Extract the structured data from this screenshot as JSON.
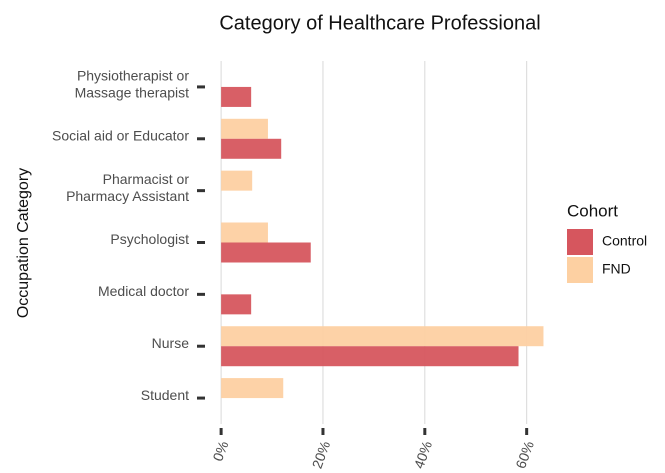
{
  "chart_data": {
    "type": "bar",
    "orientation": "horizontal",
    "title": "Category of Healthcare Professional",
    "y_label": "Occupation Category",
    "categories": [
      "Physiotherapist or\nMassage therapist",
      "Social aid or Educator",
      "Pharmacist or\nPharmacy Assistant",
      "Psychologist",
      "Medical doctor",
      "Nurse",
      "Student"
    ],
    "series": [
      {
        "name": "Control",
        "color": "#d6565e",
        "values": [
          5.9,
          11.8,
          0,
          17.6,
          5.9,
          58.4,
          0
        ]
      },
      {
        "name": "FND",
        "color": "#fdd0a2",
        "values": [
          0,
          9.2,
          6.1,
          9.2,
          0,
          63.3,
          12.2
        ]
      }
    ],
    "legend_title": "Cohort",
    "legend": "right",
    "grid": true,
    "xlim": [
      -1.2,
      63.6
    ],
    "xticks": [
      {
        "value": 0,
        "label": "0%"
      },
      {
        "value": 20,
        "label": "20%"
      },
      {
        "value": 40,
        "label": "40%"
      },
      {
        "value": 60,
        "label": "60%"
      }
    ]
  }
}
